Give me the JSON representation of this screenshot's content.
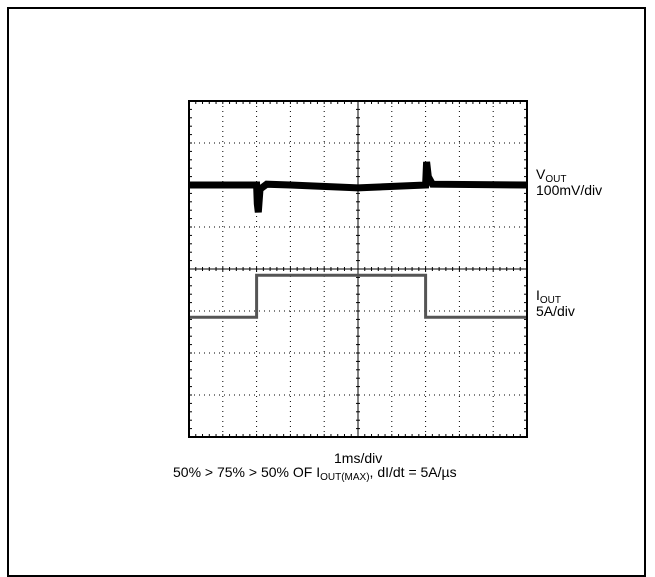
{
  "chart_data": {
    "type": "line",
    "title": "",
    "xlabel": "1ms/div",
    "caption": {
      "prefix": "50% > 75% > 50% OF I",
      "sub": "OUT(MAX)",
      "suffix": ", dI/dt = 5A/µs"
    },
    "grid": true,
    "x_divisions": 10,
    "y_divisions": 8,
    "xlim_div": [
      0,
      10
    ],
    "ylim_div": [
      0,
      8
    ],
    "series": [
      {
        "name": "VOUT",
        "label_main": "V",
        "label_sub": "OUT",
        "scale": "100mV/div",
        "color": "#000000",
        "x_div": [
          0,
          2.0,
          2.02,
          2.05,
          2.1,
          2.3,
          3.0,
          5.0,
          7.0,
          7.0,
          7.03,
          7.08,
          7.2,
          10.0
        ],
        "y_div": [
          6.0,
          6.0,
          5.55,
          5.35,
          5.9,
          6.02,
          6.0,
          5.93,
          6.0,
          6.0,
          6.55,
          6.2,
          6.02,
          6.0
        ]
      },
      {
        "name": "IOUT",
        "label_main": "I",
        "label_sub": "OUT",
        "scale": "5A/div",
        "color": "#555555",
        "x_div": [
          0,
          2.0,
          2.0,
          7.0,
          7.0,
          10.0
        ],
        "y_div": [
          2.85,
          2.85,
          3.85,
          3.85,
          2.85,
          2.85
        ]
      }
    ]
  }
}
